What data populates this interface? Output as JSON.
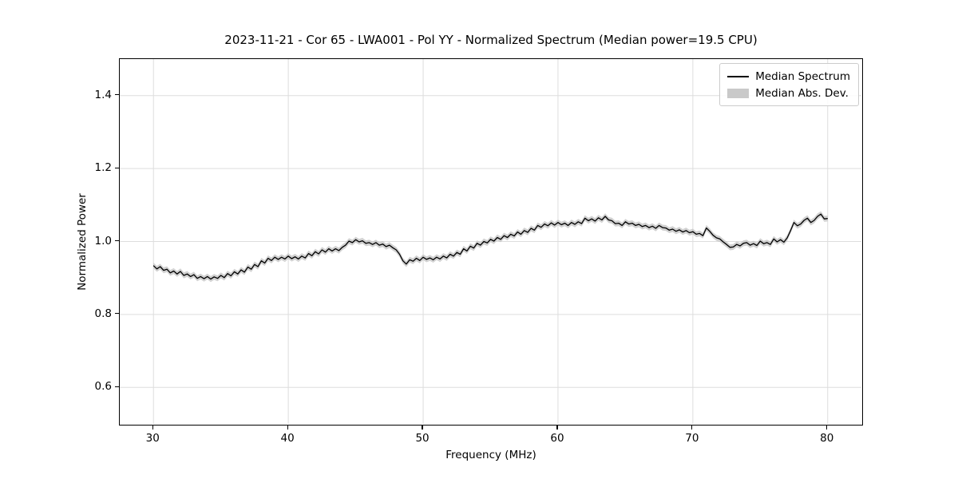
{
  "title": "2023-11-21 - Cor 65 - LWA001 - Pol YY - Normalized Spectrum (Median power=19.5 CPU)",
  "axes": {
    "xlabel": "Frequency (MHz)",
    "ylabel": "Normalized Power"
  },
  "legend": {
    "items": [
      {
        "label": "Median Spectrum",
        "swatch": "black-line",
        "color": "#000000"
      },
      {
        "label": "Median Abs. Dev.",
        "swatch": "gray-patch",
        "color": "#c9c9c9"
      }
    ]
  },
  "colors": {
    "line": "#000000",
    "band": "#c6c6c6",
    "grid": "#dddddd",
    "spine": "#000000",
    "background": "#ffffff"
  },
  "chart_data": {
    "type": "line",
    "title": "2023-11-21 - Cor 65 - LWA001 - Pol YY - Normalized Spectrum (Median power=19.5 CPU)",
    "xlabel": "Frequency (MHz)",
    "ylabel": "Normalized Power",
    "xlim": [
      27.5,
      82.5
    ],
    "ylim": [
      0.5,
      1.5
    ],
    "xtick_labels": [
      "30",
      "40",
      "50",
      "60",
      "70",
      "80"
    ],
    "ytick_labels": [
      "0.6",
      "0.8",
      "1.0",
      "1.2",
      "1.4"
    ],
    "grid": true,
    "legend_position": "upper right",
    "series": [
      {
        "name": "Median Spectrum",
        "type": "line",
        "color": "#000000",
        "x_start": 30.0,
        "x_step": 0.25,
        "values": [
          0.934,
          0.925,
          0.931,
          0.921,
          0.924,
          0.914,
          0.919,
          0.911,
          0.918,
          0.907,
          0.911,
          0.904,
          0.909,
          0.899,
          0.904,
          0.898,
          0.904,
          0.897,
          0.903,
          0.899,
          0.907,
          0.901,
          0.912,
          0.906,
          0.917,
          0.911,
          0.922,
          0.916,
          0.93,
          0.924,
          0.937,
          0.931,
          0.947,
          0.941,
          0.954,
          0.948,
          0.957,
          0.951,
          0.957,
          0.952,
          0.96,
          0.953,
          0.958,
          0.952,
          0.96,
          0.955,
          0.967,
          0.961,
          0.972,
          0.966,
          0.977,
          0.971,
          0.98,
          0.974,
          0.98,
          0.975,
          0.984,
          0.99,
          1.001,
          0.997,
          1.005,
          0.999,
          1.002,
          0.995,
          0.997,
          0.992,
          0.997,
          0.99,
          0.993,
          0.986,
          0.99,
          0.983,
          0.977,
          0.965,
          0.947,
          0.938,
          0.95,
          0.946,
          0.954,
          0.948,
          0.957,
          0.951,
          0.955,
          0.95,
          0.957,
          0.952,
          0.96,
          0.955,
          0.965,
          0.96,
          0.97,
          0.965,
          0.98,
          0.974,
          0.987,
          0.982,
          0.995,
          0.99,
          1.0,
          0.996,
          1.006,
          1.001,
          1.011,
          1.006,
          1.016,
          1.011,
          1.02,
          1.015,
          1.026,
          1.02,
          1.03,
          1.025,
          1.036,
          1.031,
          1.044,
          1.039,
          1.048,
          1.043,
          1.051,
          1.045,
          1.052,
          1.046,
          1.05,
          1.044,
          1.052,
          1.047,
          1.054,
          1.049,
          1.064,
          1.057,
          1.062,
          1.056,
          1.065,
          1.059,
          1.069,
          1.059,
          1.057,
          1.049,
          1.05,
          1.044,
          1.054,
          1.048,
          1.05,
          1.044,
          1.047,
          1.041,
          1.044,
          1.038,
          1.042,
          1.036,
          1.044,
          1.038,
          1.037,
          1.031,
          1.034,
          1.028,
          1.032,
          1.026,
          1.03,
          1.024,
          1.027,
          1.02,
          1.022,
          1.016,
          1.037,
          1.028,
          1.017,
          1.01,
          1.007,
          0.999,
          0.992,
          0.984,
          0.985,
          0.992,
          0.988,
          0.995,
          0.997,
          0.99,
          0.994,
          0.989,
          1.001,
          0.994,
          0.997,
          0.992,
          1.007,
          0.999,
          1.005,
          0.998,
          1.01,
          1.03,
          1.052,
          1.043,
          1.048,
          1.058,
          1.064,
          1.052,
          1.058,
          1.069,
          1.075,
          1.062,
          1.063
        ]
      },
      {
        "name": "Median Abs. Dev.",
        "type": "band",
        "color": "#c6c6c6",
        "halfwidth": 0.008
      }
    ]
  }
}
